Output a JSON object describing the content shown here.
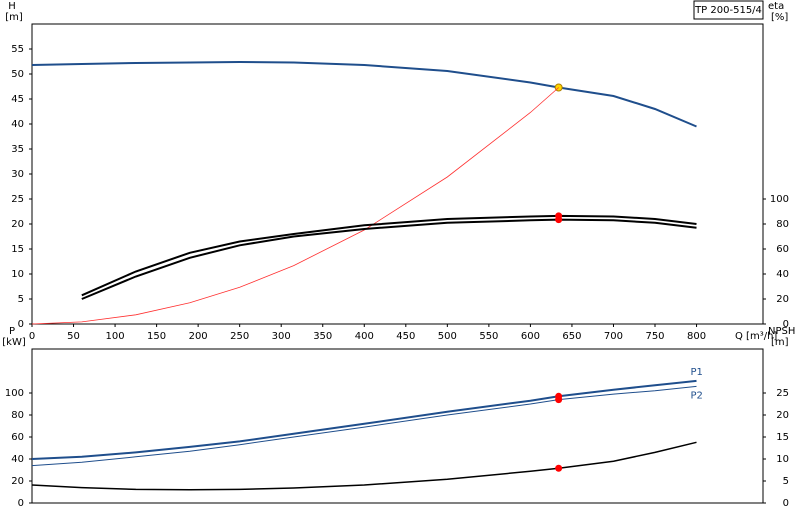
{
  "chart_data": [
    {
      "type": "line",
      "title": "TP 200-515/4",
      "y_label": "H",
      "y_unit": "[m]",
      "y2_label": "eta",
      "y2_unit": "[%]",
      "x_label": "Q [m³/h]",
      "x": [
        0,
        60,
        125,
        190,
        250,
        315,
        400,
        500,
        600,
        634,
        700,
        750,
        800
      ],
      "xlim": [
        0,
        880
      ],
      "xticks": [
        0,
        50,
        100,
        150,
        200,
        250,
        300,
        350,
        400,
        450,
        500,
        550,
        600,
        650,
        700,
        750,
        800
      ],
      "ylim": [
        0,
        60
      ],
      "yticks": [
        0,
        5,
        10,
        15,
        20,
        25,
        30,
        35,
        40,
        45,
        50,
        55
      ],
      "y2lim": [
        0,
        240
      ],
      "y2ticks": [
        0,
        20,
        40,
        60,
        80,
        100
      ],
      "marker_x": 634,
      "series": [
        {
          "color": "#1f4e8c",
          "width": 2,
          "marker": "#ffd700",
          "values": [
            51.8,
            52,
            52.2,
            52.3,
            52.4,
            52.3,
            51.8,
            50.6,
            48.3,
            47.3,
            45.6,
            43,
            39.5
          ]
        },
        {
          "color": "#ff3030",
          "width": 0.8,
          "values": [
            0,
            0.42,
            1.84,
            4.24,
            7.35,
            11.67,
            18.8,
            29.4,
            42.3,
            47.3,
            null,
            null,
            null
          ]
        },
        {
          "color": "#000000",
          "width": 2,
          "axis": "y2",
          "marker": "#ff0000",
          "values": [
            null,
            23,
            42,
            57,
            66,
            72,
            79,
            84,
            86,
            86.5,
            86,
            84,
            80
          ]
        },
        {
          "color": "#000000",
          "width": 2,
          "axis": "y2",
          "marker": "#ff0000",
          "values": [
            null,
            20,
            38,
            53,
            63,
            70,
            76,
            81,
            83,
            83.5,
            83,
            81,
            77
          ]
        }
      ]
    },
    {
      "type": "line",
      "y_label": "P",
      "y_unit": "[kW]",
      "y2_label": "NPSH",
      "y2_unit": "[m]",
      "x": [
        0,
        60,
        125,
        190,
        250,
        315,
        400,
        500,
        600,
        634,
        700,
        750,
        800
      ],
      "xlim": [
        0,
        880
      ],
      "ylim": [
        0,
        140
      ],
      "yticks": [
        0,
        20,
        40,
        60,
        80,
        100
      ],
      "y2lim": [
        0,
        35
      ],
      "y2ticks": [
        0,
        5,
        10,
        15,
        20,
        25
      ],
      "marker_x": 634,
      "series": [
        {
          "name": "P1",
          "color": "#1f4e8c",
          "width": 2,
          "marker": "#ff0000",
          "values": [
            40,
            42,
            46,
            51,
            56,
            63,
            72,
            83,
            93,
            97,
            103,
            107,
            111
          ]
        },
        {
          "name": "P2",
          "color": "#1f4e8c",
          "width": 1,
          "marker": "#ff0000",
          "values": [
            34,
            37,
            42,
            47,
            53,
            60,
            69,
            80,
            90,
            94,
            99,
            102,
            106
          ]
        },
        {
          "color": "#000000",
          "width": 1.5,
          "axis": "y2",
          "marker": "#ff0000",
          "values": [
            4.1,
            3.5,
            3.1,
            3.0,
            3.1,
            3.4,
            4.1,
            5.4,
            7.2,
            7.9,
            9.5,
            11.5,
            13.8
          ]
        }
      ]
    }
  ]
}
